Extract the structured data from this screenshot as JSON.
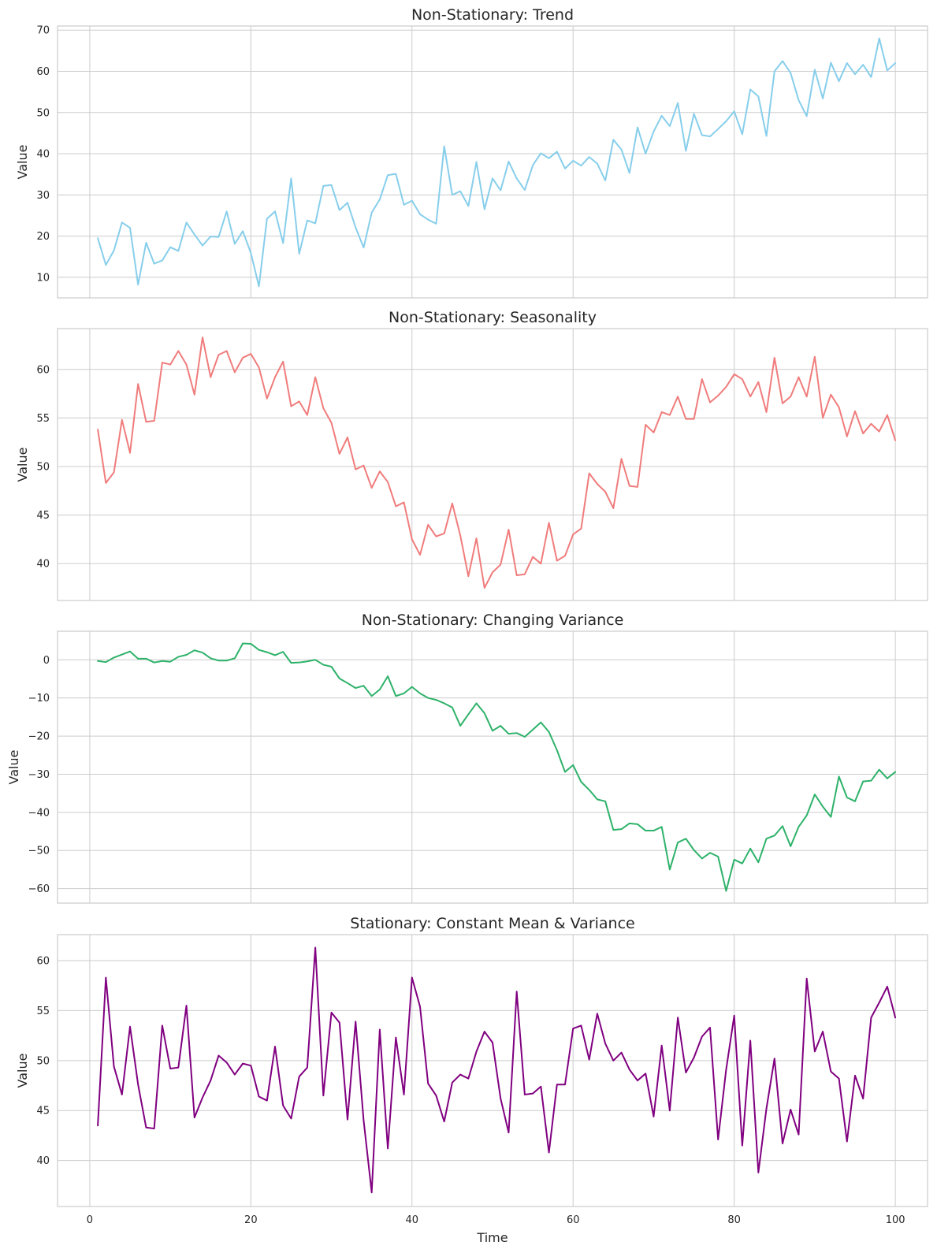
{
  "chart_data": [
    {
      "type": "line",
      "title": "Non-Stationary: Trend",
      "xlabel": "",
      "ylabel": "Value",
      "color": "#87CEEB",
      "xlim": [
        -4,
        104
      ],
      "ylim": [
        5,
        71
      ],
      "xticks": [
        0,
        20,
        40,
        60,
        80,
        100
      ],
      "yticks": [
        10,
        20,
        30,
        40,
        50,
        60,
        70
      ],
      "x": [
        1,
        2,
        3,
        4,
        5,
        6,
        7,
        8,
        9,
        10,
        11,
        12,
        13,
        14,
        15,
        16,
        17,
        18,
        19,
        20,
        21,
        22,
        23,
        24,
        25,
        26,
        27,
        28,
        29,
        30,
        31,
        32,
        33,
        34,
        35,
        36,
        37,
        38,
        39,
        40,
        41,
        42,
        43,
        44,
        45,
        46,
        47,
        48,
        49,
        50,
        51,
        52,
        53,
        54,
        55,
        56,
        57,
        58,
        59,
        60,
        61,
        62,
        63,
        64,
        65,
        66,
        67,
        68,
        69,
        70,
        71,
        72,
        73,
        74,
        75,
        76,
        77,
        78,
        79,
        80,
        81,
        82,
        83,
        84,
        85,
        86,
        87,
        88,
        89,
        90,
        91,
        92,
        93,
        94,
        95,
        96,
        97,
        98,
        99,
        100
      ],
      "y": [
        19.5,
        13.0,
        16.5,
        23.3,
        22.0,
        8.2,
        18.4,
        13.3,
        14.1,
        17.3,
        16.4,
        23.3,
        20.4,
        17.7,
        19.9,
        19.8,
        26.0,
        18.1,
        21.2,
        15.9,
        7.8,
        24.2,
        26.0,
        18.3,
        34.0,
        15.7,
        23.8,
        23.1,
        32.2,
        32.4,
        26.3,
        28.1,
        22.1,
        17.2,
        25.7,
        28.9,
        34.8,
        35.1,
        27.6,
        28.6,
        25.3,
        24.0,
        23.0,
        41.8,
        30.0,
        30.9,
        27.3,
        38.0,
        26.5,
        34.0,
        31.1,
        38.1,
        34.0,
        31.2,
        37.2,
        40.1,
        38.9,
        40.5,
        36.4,
        38.3,
        37.1,
        39.2,
        37.6,
        33.5,
        43.4,
        41.0,
        35.3,
        46.4,
        40.0,
        45.4,
        49.2,
        46.7,
        52.3,
        40.7,
        49.7,
        44.5,
        44.2,
        46.0,
        47.9,
        50.3,
        44.7,
        55.6,
        53.9,
        44.3,
        60.0,
        62.5,
        59.6,
        53.0,
        49.1,
        60.4,
        53.4,
        62.1,
        57.6,
        62.0,
        59.3,
        61.6,
        58.6,
        68.0,
        60.2,
        62.0
      ]
    },
    {
      "type": "line",
      "title": "Non-Stationary: Seasonality",
      "xlabel": "",
      "ylabel": "Value",
      "color": "#F07C7C",
      "xlim": [
        -4,
        104
      ],
      "ylim": [
        36.2,
        64.2
      ],
      "xticks": [
        0,
        20,
        40,
        60,
        80,
        100
      ],
      "yticks": [
        40,
        45,
        50,
        55,
        60
      ],
      "x": [
        1,
        2,
        3,
        4,
        5,
        6,
        7,
        8,
        9,
        10,
        11,
        12,
        13,
        14,
        15,
        16,
        17,
        18,
        19,
        20,
        21,
        22,
        23,
        24,
        25,
        26,
        27,
        28,
        29,
        30,
        31,
        32,
        33,
        34,
        35,
        36,
        37,
        38,
        39,
        40,
        41,
        42,
        43,
        44,
        45,
        46,
        47,
        48,
        49,
        50,
        51,
        52,
        53,
        54,
        55,
        56,
        57,
        58,
        59,
        60,
        61,
        62,
        63,
        64,
        65,
        66,
        67,
        68,
        69,
        70,
        71,
        72,
        73,
        74,
        75,
        76,
        77,
        78,
        79,
        80,
        81,
        82,
        83,
        84,
        85,
        86,
        87,
        88,
        89,
        90,
        91,
        92,
        93,
        94,
        95,
        96,
        97,
        98,
        99,
        100
      ],
      "y": [
        53.8,
        48.3,
        49.4,
        54.8,
        51.4,
        58.5,
        54.6,
        54.7,
        60.7,
        60.5,
        61.9,
        60.5,
        57.4,
        63.3,
        59.2,
        61.5,
        61.9,
        59.7,
        61.2,
        61.6,
        60.2,
        57.0,
        59.2,
        60.8,
        56.2,
        56.7,
        55.3,
        59.2,
        56.0,
        54.5,
        51.3,
        53.0,
        49.7,
        50.1,
        47.8,
        49.5,
        48.4,
        45.9,
        46.3,
        42.5,
        40.9,
        44.0,
        42.8,
        43.1,
        46.2,
        42.9,
        38.7,
        42.6,
        37.5,
        39.1,
        39.9,
        43.5,
        38.8,
        38.9,
        40.7,
        40.0,
        44.2,
        40.3,
        40.8,
        43.0,
        43.6,
        49.3,
        48.2,
        47.4,
        45.7,
        50.8,
        48.0,
        47.9,
        54.3,
        53.5,
        55.6,
        55.3,
        57.2,
        54.9,
        54.9,
        59.0,
        56.6,
        57.3,
        58.2,
        59.5,
        59.0,
        57.2,
        58.7,
        55.6,
        61.2,
        56.5,
        57.2,
        59.2,
        57.2,
        61.3,
        55.0,
        57.4,
        56.1,
        53.1,
        55.7,
        53.4,
        54.4,
        53.6,
        55.3,
        52.7
      ]
    },
    {
      "type": "line",
      "title": "Non-Stationary: Changing Variance",
      "xlabel": "",
      "ylabel": "Value",
      "color": "#2EB26A",
      "xlim": [
        -4,
        104
      ],
      "ylim": [
        -63.8,
        7.5
      ],
      "xticks": [
        0,
        20,
        40,
        60,
        80,
        100
      ],
      "yticks": [
        -60,
        -50,
        -40,
        -30,
        -20,
        -10,
        0
      ],
      "x": [
        1,
        2,
        3,
        4,
        5,
        6,
        7,
        8,
        9,
        10,
        11,
        12,
        13,
        14,
        15,
        16,
        17,
        18,
        19,
        20,
        21,
        22,
        23,
        24,
        25,
        26,
        27,
        28,
        29,
        30,
        31,
        32,
        33,
        34,
        35,
        36,
        37,
        38,
        39,
        40,
        41,
        42,
        43,
        44,
        45,
        46,
        47,
        48,
        49,
        50,
        51,
        52,
        53,
        54,
        55,
        56,
        57,
        58,
        59,
        60,
        61,
        62,
        63,
        64,
        65,
        66,
        67,
        68,
        69,
        70,
        71,
        72,
        73,
        74,
        75,
        76,
        77,
        78,
        79,
        80,
        81,
        82,
        83,
        84,
        85,
        86,
        87,
        88,
        89,
        90,
        91,
        92,
        93,
        94,
        95,
        96,
        97,
        98,
        99,
        100
      ],
      "y": [
        -0.3,
        -0.6,
        0.6,
        1.4,
        2.2,
        0.3,
        0.3,
        -0.7,
        -0.3,
        -0.5,
        0.8,
        1.3,
        2.5,
        1.9,
        0.4,
        -0.2,
        -0.2,
        0.4,
        4.3,
        4.2,
        2.6,
        2.0,
        1.2,
        2.1,
        -0.8,
        -0.7,
        -0.4,
        0.0,
        -1.3,
        -1.8,
        -4.9,
        -6.1,
        -7.4,
        -6.8,
        -9.5,
        -7.8,
        -4.3,
        -9.5,
        -8.8,
        -7.1,
        -8.8,
        -10.0,
        -10.5,
        -11.4,
        -12.5,
        -17.3,
        -14.3,
        -11.4,
        -14.0,
        -18.6,
        -17.3,
        -19.4,
        -19.2,
        -20.2,
        -18.3,
        -16.4,
        -18.9,
        -23.7,
        -29.4,
        -27.6,
        -32.0,
        -34.1,
        -36.6,
        -37.1,
        -44.6,
        -44.4,
        -42.9,
        -43.1,
        -44.8,
        -44.8,
        -43.8,
        -55.0,
        -47.9,
        -46.9,
        -49.9,
        -52.1,
        -50.6,
        -51.6,
        -60.6,
        -52.4,
        -53.4,
        -49.5,
        -53.1,
        -46.9,
        -46.1,
        -43.6,
        -48.9,
        -43.8,
        -40.8,
        -35.3,
        -38.5,
        -41.2,
        -30.6,
        -36.1,
        -37.1,
        -31.9,
        -31.7,
        -28.8,
        -31.1,
        -29.4
      ]
    },
    {
      "type": "line",
      "title": "Stationary: Constant Mean & Variance",
      "xlabel": "Time",
      "ylabel": "Value",
      "color": "#800080",
      "xlim": [
        -4,
        104
      ],
      "ylim": [
        35.4,
        62.6
      ],
      "xticks": [
        0,
        20,
        40,
        60,
        80,
        100
      ],
      "yticks": [
        40,
        45,
        50,
        55,
        60
      ],
      "x": [
        1,
        2,
        3,
        4,
        5,
        6,
        7,
        8,
        9,
        10,
        11,
        12,
        13,
        14,
        15,
        16,
        17,
        18,
        19,
        20,
        21,
        22,
        23,
        24,
        25,
        26,
        27,
        28,
        29,
        30,
        31,
        32,
        33,
        34,
        35,
        36,
        37,
        38,
        39,
        40,
        41,
        42,
        43,
        44,
        45,
        46,
        47,
        48,
        49,
        50,
        51,
        52,
        53,
        54,
        55,
        56,
        57,
        58,
        59,
        60,
        61,
        62,
        63,
        64,
        65,
        66,
        67,
        68,
        69,
        70,
        71,
        72,
        73,
        74,
        75,
        76,
        77,
        78,
        79,
        80,
        81,
        82,
        83,
        84,
        85,
        86,
        87,
        88,
        89,
        90,
        91,
        92,
        93,
        94,
        95,
        96,
        97,
        98,
        99,
        100
      ],
      "y": [
        43.5,
        58.3,
        49.4,
        46.6,
        53.4,
        47.6,
        43.3,
        43.2,
        53.5,
        49.2,
        49.3,
        55.5,
        44.3,
        46.3,
        48.0,
        50.5,
        49.8,
        48.6,
        49.7,
        49.5,
        46.4,
        46.0,
        51.4,
        45.5,
        44.2,
        48.4,
        49.3,
        61.3,
        46.5,
        54.8,
        53.8,
        44.1,
        53.9,
        44.0,
        36.8,
        53.1,
        41.2,
        52.3,
        46.6,
        58.3,
        55.4,
        47.7,
        46.5,
        43.9,
        47.8,
        48.6,
        48.2,
        50.9,
        52.9,
        51.8,
        46.2,
        42.8,
        56.9,
        46.6,
        46.7,
        47.4,
        40.8,
        47.6,
        47.6,
        53.2,
        53.5,
        50.1,
        54.7,
        51.7,
        50.0,
        50.8,
        49.1,
        48.0,
        48.7,
        44.4,
        51.5,
        45.0,
        54.3,
        48.8,
        50.3,
        52.4,
        53.3,
        42.1,
        49.1,
        54.5,
        41.5,
        52.0,
        38.8,
        45.2,
        50.2,
        41.7,
        45.1,
        42.6,
        58.2,
        50.9,
        52.9,
        48.9,
        48.2,
        41.9,
        48.5,
        46.2,
        54.3,
        55.8,
        57.4,
        54.3
      ]
    }
  ],
  "style": {
    "grid": true,
    "grid_color": "#CCCCCC",
    "spine_color": "#CCCCCC",
    "text_color": "#262626",
    "background": "#FFFFFF"
  }
}
